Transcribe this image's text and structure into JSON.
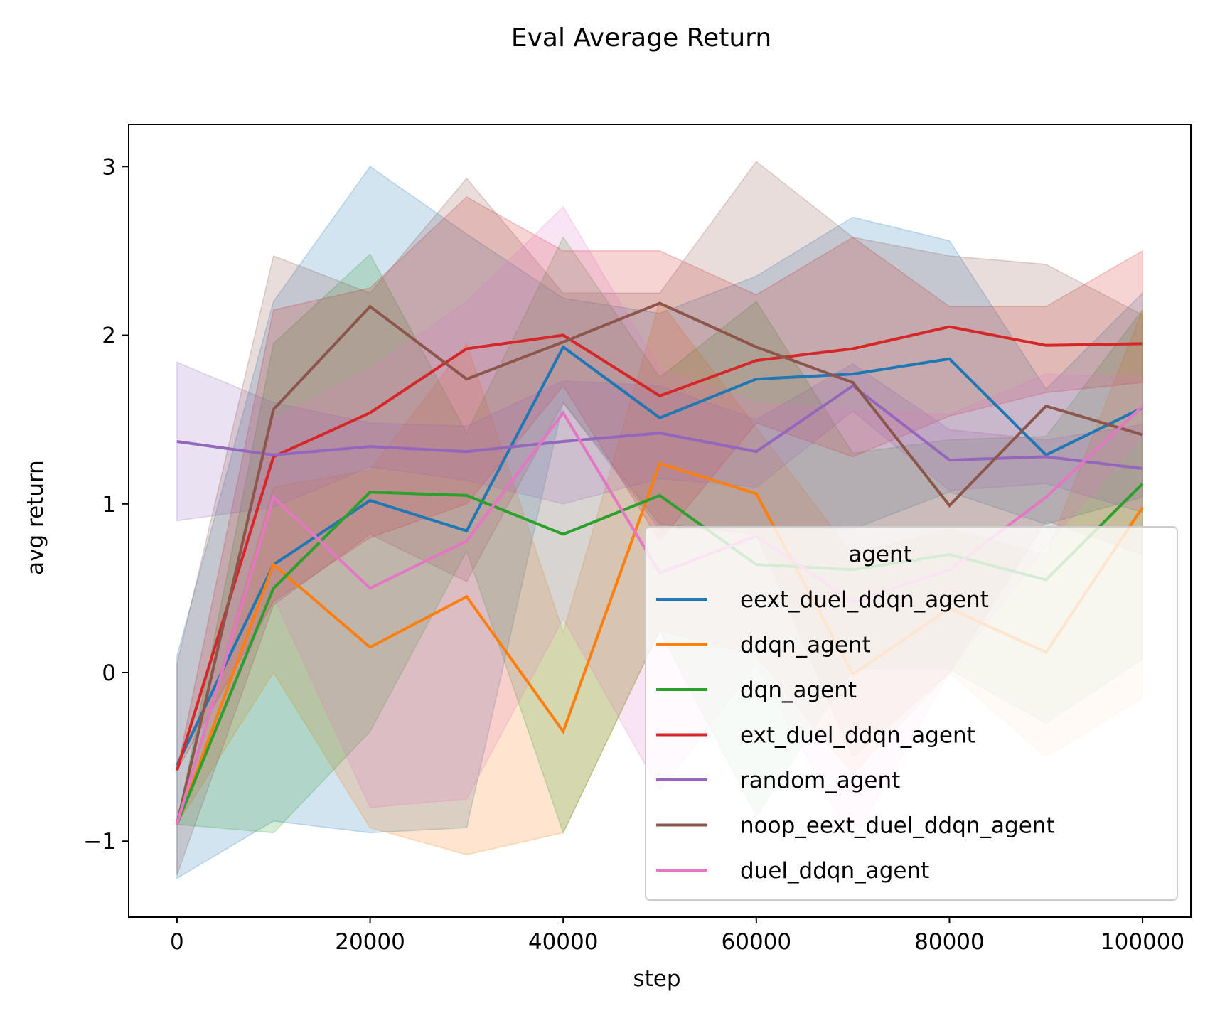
{
  "chart_data": {
    "type": "line",
    "title": "Eval Average Return",
    "xlabel": "step",
    "ylabel": "avg return",
    "xlim": [
      -5000,
      105000
    ],
    "ylim": [
      -1.45,
      3.25
    ],
    "xticks": [
      0,
      20000,
      40000,
      60000,
      80000,
      100000
    ],
    "xtick_labels": [
      "0",
      "20000",
      "40000",
      "60000",
      "80000",
      "100000"
    ],
    "yticks": [
      -1,
      0,
      1,
      2,
      3
    ],
    "ytick_labels": [
      "−1",
      "0",
      "1",
      "2",
      "3"
    ],
    "grid": false,
    "legend": {
      "title": "agent",
      "placement": "lower right"
    },
    "x": [
      0,
      10000,
      20000,
      30000,
      40000,
      50000,
      60000,
      70000,
      80000,
      90000,
      100000
    ],
    "series": [
      {
        "name": "eext_duel_ddqn_agent",
        "color": "#1f77b4",
        "values": [
          -0.55,
          0.64,
          1.02,
          0.84,
          1.93,
          1.51,
          1.74,
          1.77,
          1.86,
          1.29,
          1.57
        ],
        "lower": [
          -1.22,
          -0.88,
          -0.95,
          -0.92,
          1.6,
          0.85,
          0.86,
          0.85,
          1.07,
          0.88,
          1.04
        ],
        "upper": [
          0.1,
          2.2,
          3.0,
          2.6,
          2.22,
          2.13,
          2.35,
          2.7,
          2.56,
          1.68,
          2.25
        ]
      },
      {
        "name": "ddqn_agent",
        "color": "#ff7f0e",
        "values": [
          -0.9,
          0.64,
          0.15,
          0.45,
          -0.35,
          1.24,
          1.06,
          -0.01,
          0.38,
          0.12,
          0.98
        ],
        "lower": [
          -0.9,
          0.0,
          -0.92,
          -1.08,
          -0.95,
          0.25,
          0.1,
          -0.6,
          0.0,
          -0.5,
          -0.15
        ],
        "upper": [
          -0.9,
          1.1,
          1.2,
          1.95,
          0.24,
          2.2,
          1.45,
          0.7,
          0.85,
          0.7,
          2.15
        ]
      },
      {
        "name": "dqn_agent",
        "color": "#2ca02c",
        "values": [
          -0.9,
          0.5,
          1.07,
          1.05,
          0.82,
          1.05,
          0.64,
          0.61,
          0.7,
          0.55,
          1.12
        ],
        "lower": [
          -0.9,
          -0.95,
          -0.35,
          0.72,
          -0.95,
          0.25,
          -0.85,
          0.02,
          0.02,
          -0.3,
          0.08
        ],
        "upper": [
          -0.9,
          1.95,
          2.48,
          1.42,
          2.58,
          1.75,
          2.2,
          1.3,
          1.38,
          1.4,
          2.15
        ]
      },
      {
        "name": "ext_duel_ddqn_agent",
        "color": "#d62728",
        "values": [
          -0.58,
          1.28,
          1.54,
          1.92,
          2.0,
          1.64,
          1.85,
          1.92,
          2.05,
          1.94,
          1.95
        ],
        "lower": [
          -0.58,
          0.42,
          0.8,
          1.0,
          1.7,
          0.78,
          1.48,
          1.28,
          1.52,
          1.66,
          1.72
        ],
        "upper": [
          -0.58,
          2.15,
          2.28,
          2.82,
          2.5,
          2.5,
          2.24,
          2.58,
          2.17,
          2.17,
          2.5
        ]
      },
      {
        "name": "random_agent",
        "color": "#9467bd",
        "values": [
          1.37,
          1.29,
          1.34,
          1.31,
          1.37,
          1.42,
          1.31,
          1.7,
          1.26,
          1.28,
          1.21
        ],
        "lower": [
          0.9,
          0.98,
          1.22,
          1.14,
          1.0,
          1.15,
          1.1,
          1.55,
          1.08,
          1.12,
          0.95
        ],
        "upper": [
          1.84,
          1.6,
          1.48,
          1.46,
          1.73,
          1.7,
          1.5,
          1.83,
          1.44,
          1.38,
          1.47
        ]
      },
      {
        "name": "noop_eext_duel_ddqn_agent",
        "color": "#8c564b",
        "values": [
          -0.9,
          1.56,
          2.17,
          1.74,
          1.96,
          2.19,
          1.93,
          1.72,
          0.99,
          1.58,
          1.41
        ],
        "lower": [
          -1.2,
          0.4,
          0.82,
          0.54,
          1.6,
          0.88,
          0.82,
          -0.5,
          0.0,
          0.9,
          0.7
        ],
        "upper": [
          0.05,
          2.47,
          2.25,
          2.93,
          2.25,
          2.25,
          3.03,
          2.58,
          2.47,
          2.42,
          2.12
        ]
      },
      {
        "name": "duel_ddqn_agent",
        "color": "#e377c2",
        "values": [
          -0.9,
          1.04,
          0.5,
          0.78,
          1.54,
          0.59,
          0.81,
          0.42,
          0.61,
          1.04,
          1.58
        ],
        "lower": [
          -0.9,
          0.45,
          -0.8,
          -0.75,
          0.32,
          -0.7,
          0.05,
          -1.0,
          0.0,
          0.75,
          1.4
        ],
        "upper": [
          -0.9,
          1.5,
          1.8,
          2.2,
          2.76,
          1.8,
          1.6,
          1.55,
          1.53,
          1.77,
          1.75
        ]
      }
    ]
  }
}
